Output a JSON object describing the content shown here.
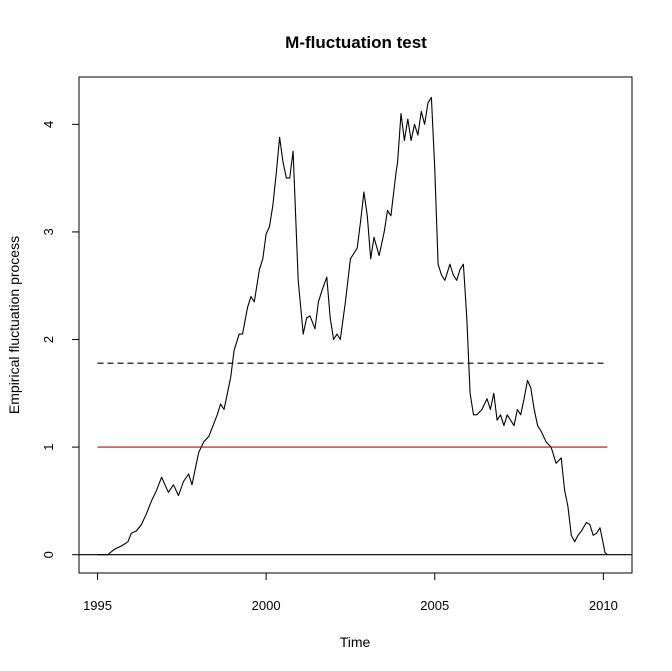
{
  "chart_data": {
    "type": "line",
    "title": "M-fluctuation test",
    "xlabel": "Time",
    "ylabel": "Empirical fluctuation process",
    "xlim": [
      1994.45,
      2010.85
    ],
    "ylim": [
      -0.17,
      4.44
    ],
    "x_ticks": [
      1995,
      2000,
      2005,
      2010
    ],
    "y_ticks": [
      0,
      1,
      2,
      3,
      4
    ],
    "grid": false,
    "legend": "none",
    "series": [
      {
        "color": "#000000",
        "style": "solid",
        "x": [
          1995.0,
          1995.3,
          1995.5,
          1995.7,
          1995.9,
          1996.0,
          1996.15,
          1996.3,
          1996.45,
          1996.6,
          1996.75,
          1996.9,
          1997.0,
          1997.1,
          1997.25,
          1997.4,
          1997.55,
          1997.7,
          1997.8,
          1997.9,
          1998.0,
          1998.15,
          1998.3,
          1998.45,
          1998.55,
          1998.65,
          1998.75,
          1998.85,
          1998.95,
          1999.05,
          1999.2,
          1999.3,
          1999.45,
          1999.55,
          1999.65,
          1999.8,
          1999.9,
          2000.0,
          2000.1,
          2000.2,
          2000.3,
          2000.4,
          2000.5,
          2000.6,
          2000.7,
          2000.8,
          2000.95,
          2001.1,
          2001.2,
          2001.3,
          2001.45,
          2001.55,
          2001.65,
          2001.8,
          2001.9,
          2002.0,
          2002.1,
          2002.2,
          2002.35,
          2002.5,
          2002.6,
          2002.7,
          2002.8,
          2002.9,
          2003.0,
          2003.1,
          2003.2,
          2003.35,
          2003.5,
          2003.6,
          2003.7,
          2003.85,
          2003.9,
          2004.0,
          2004.1,
          2004.2,
          2004.3,
          2004.4,
          2004.5,
          2004.6,
          2004.7,
          2004.8,
          2004.9,
          2005.0,
          2005.1,
          2005.2,
          2005.3,
          2005.45,
          2005.55,
          2005.65,
          2005.75,
          2005.85,
          2005.95,
          2006.05,
          2006.15,
          2006.25,
          2006.4,
          2006.55,
          2006.65,
          2006.75,
          2006.85,
          2006.95,
          2007.05,
          2007.15,
          2007.25,
          2007.35,
          2007.45,
          2007.55,
          2007.65,
          2007.75,
          2007.85,
          2007.95,
          2008.05,
          2008.15,
          2008.3,
          2008.45,
          2008.6,
          2008.75,
          2008.85,
          2008.95,
          2009.05,
          2009.15,
          2009.25,
          2009.35,
          2009.5,
          2009.6,
          2009.7,
          2009.8,
          2009.9,
          2010.0,
          2010.05,
          2010.12
        ],
        "y": [
          0.0,
          0.0,
          0.05,
          0.08,
          0.12,
          0.2,
          0.22,
          0.28,
          0.38,
          0.5,
          0.6,
          0.72,
          0.65,
          0.58,
          0.65,
          0.55,
          0.68,
          0.75,
          0.65,
          0.8,
          0.95,
          1.05,
          1.1,
          1.22,
          1.3,
          1.4,
          1.35,
          1.5,
          1.65,
          1.9,
          2.05,
          2.05,
          2.3,
          2.4,
          2.35,
          2.65,
          2.75,
          2.98,
          3.05,
          3.25,
          3.55,
          3.88,
          3.65,
          3.5,
          3.5,
          3.75,
          2.55,
          2.05,
          2.2,
          2.22,
          2.1,
          2.35,
          2.45,
          2.58,
          2.2,
          2.0,
          2.05,
          2.0,
          2.35,
          2.75,
          2.8,
          2.85,
          3.1,
          3.37,
          3.15,
          2.75,
          2.95,
          2.78,
          3.0,
          3.2,
          3.15,
          3.55,
          3.65,
          4.1,
          3.85,
          4.05,
          3.85,
          4.0,
          3.9,
          4.12,
          4.0,
          4.2,
          4.25,
          3.6,
          2.7,
          2.6,
          2.55,
          2.7,
          2.6,
          2.55,
          2.65,
          2.7,
          2.2,
          1.5,
          1.3,
          1.3,
          1.35,
          1.45,
          1.35,
          1.5,
          1.25,
          1.3,
          1.2,
          1.3,
          1.25,
          1.2,
          1.35,
          1.3,
          1.45,
          1.62,
          1.55,
          1.35,
          1.2,
          1.15,
          1.05,
          1.0,
          0.85,
          0.9,
          0.6,
          0.45,
          0.18,
          0.12,
          0.18,
          0.22,
          0.3,
          0.28,
          0.18,
          0.2,
          0.25,
          0.1,
          0.02,
          0.0
        ]
      },
      {
        "color": "#000000",
        "style": "dashed",
        "x": [
          1995.0,
          2010.12
        ],
        "y": [
          1.78,
          1.78
        ]
      },
      {
        "color": "#cc0000",
        "style": "solid",
        "x": [
          1995.0,
          2010.12
        ],
        "y": [
          1.0,
          1.0
        ]
      },
      {
        "color": "#000000",
        "style": "solid",
        "x": [
          1994.45,
          2010.85
        ],
        "y": [
          0.0,
          0.0
        ]
      }
    ]
  }
}
